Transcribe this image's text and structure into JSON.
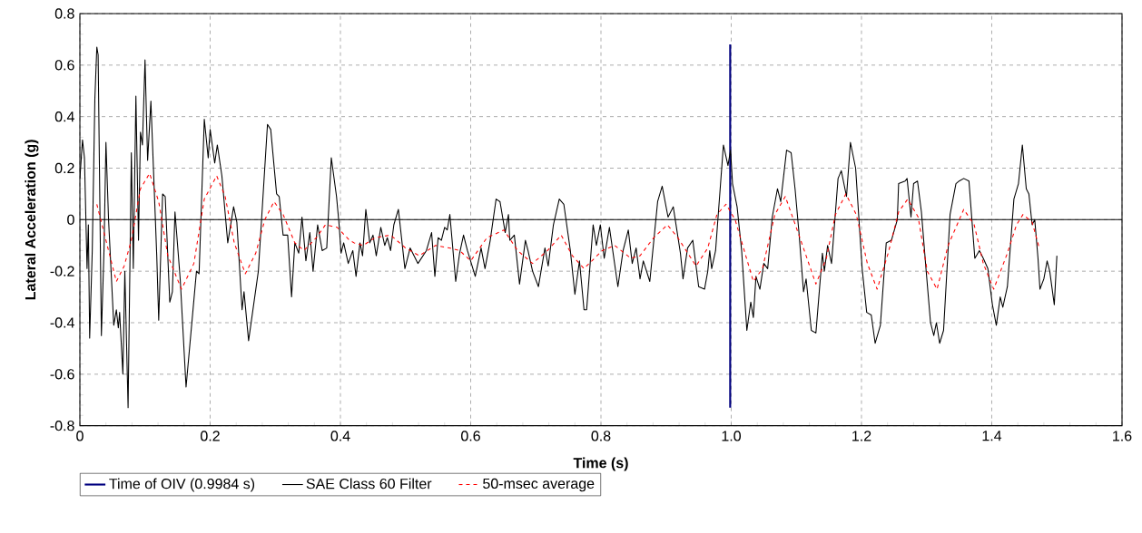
{
  "chart_data": {
    "type": "line",
    "xlabel": "Time (s)",
    "ylabel": "Lateral Acceleration (g)",
    "xlim": [
      0,
      1.6
    ],
    "ylim": [
      -0.8,
      0.8
    ],
    "xticks": [
      0,
      0.2,
      0.4,
      0.6,
      0.8,
      {
        "value": 1,
        "label": "1.0"
      },
      1.2,
      1.4,
      1.6
    ],
    "yticks": [
      -0.8,
      -0.6,
      -0.4,
      -0.2,
      0,
      0.2,
      0.4,
      0.6,
      0.8
    ],
    "grid": true,
    "legend": "bottom left",
    "marker": "none",
    "ref_lines": [
      {
        "axis": "y",
        "value": 0,
        "color": "#000000",
        "line_style": "solid"
      }
    ],
    "series": [
      {
        "name": "Time of OIV (0.9984 s)",
        "color": "#000080",
        "line_style": "solid",
        "x": [
          0.9984,
          0.9984
        ],
        "values": [
          -0.73,
          0.68
        ]
      },
      {
        "name": "SAE Class 60 Filter",
        "color": "#000000",
        "line_style": "solid",
        "x": [
          0.0,
          0.004,
          0.007,
          0.011,
          0.013,
          0.015,
          0.019,
          0.023,
          0.026,
          0.028,
          0.033,
          0.037,
          0.04,
          0.044,
          0.052,
          0.056,
          0.059,
          0.061,
          0.066,
          0.069,
          0.074,
          0.079,
          0.082,
          0.086,
          0.09,
          0.093,
          0.096,
          0.1,
          0.104,
          0.109,
          0.118,
          0.121,
          0.127,
          0.131,
          0.138,
          0.142,
          0.146,
          0.154,
          0.163,
          0.179,
          0.183,
          0.191,
          0.197,
          0.2,
          0.207,
          0.211,
          0.218,
          0.227,
          0.236,
          0.241,
          0.249,
          0.252,
          0.259,
          0.274,
          0.288,
          0.293,
          0.302,
          0.306,
          0.312,
          0.319,
          0.325,
          0.33,
          0.336,
          0.341,
          0.347,
          0.353,
          0.358,
          0.365,
          0.372,
          0.379,
          0.386,
          0.394,
          0.398,
          0.401,
          0.405,
          0.412,
          0.419,
          0.424,
          0.43,
          0.434,
          0.439,
          0.445,
          0.45,
          0.455,
          0.462,
          0.468,
          0.472,
          0.477,
          0.482,
          0.489,
          0.499,
          0.507,
          0.519,
          0.532,
          0.54,
          0.545,
          0.55,
          0.555,
          0.56,
          0.564,
          0.568,
          0.577,
          0.583,
          0.589,
          0.595,
          0.607,
          0.616,
          0.622,
          0.63,
          0.639,
          0.645,
          0.653,
          0.658,
          0.66,
          0.667,
          0.675,
          0.684,
          0.688,
          0.695,
          0.704,
          0.714,
          0.719,
          0.727,
          0.736,
          0.743,
          0.753,
          0.76,
          0.767,
          0.774,
          0.778,
          0.788,
          0.793,
          0.799,
          0.805,
          0.813,
          0.826,
          0.834,
          0.842,
          0.848,
          0.854,
          0.86,
          0.865,
          0.875,
          0.887,
          0.894,
          0.903,
          0.911,
          0.922,
          0.926,
          0.933,
          0.941,
          0.95,
          0.959,
          0.964,
          0.967,
          0.97,
          0.976,
          0.988,
          0.995,
          0.999,
          1.002,
          1.009,
          1.016,
          1.024,
          1.03,
          1.034,
          1.038,
          1.044,
          1.05,
          1.056,
          1.063,
          1.071,
          1.076,
          1.085,
          1.092,
          1.098,
          1.104,
          1.111,
          1.115,
          1.123,
          1.13,
          1.14,
          1.143,
          1.148,
          1.154,
          1.164,
          1.169,
          1.177,
          1.183,
          1.191,
          1.201,
          1.208,
          1.215,
          1.221,
          1.229,
          1.238,
          1.246,
          1.255,
          1.257,
          1.267,
          1.27,
          1.276,
          1.28,
          1.286,
          1.292,
          1.299,
          1.306,
          1.311,
          1.315,
          1.32,
          1.326,
          1.336,
          1.345,
          1.35,
          1.357,
          1.365,
          1.374,
          1.381,
          1.387,
          1.394,
          1.401,
          1.407,
          1.413,
          1.417,
          1.424,
          1.434,
          1.441,
          1.447,
          1.453,
          1.457,
          1.462,
          1.466,
          1.471,
          1.474,
          1.48,
          1.485,
          1.489,
          1.496,
          1.5
        ],
        "values": [
          0.16,
          0.31,
          0.24,
          -0.19,
          -0.02,
          -0.46,
          -0.12,
          0.47,
          0.67,
          0.64,
          -0.45,
          -0.12,
          0.3,
          0.0,
          -0.41,
          -0.35,
          -0.42,
          -0.36,
          -0.6,
          -0.2,
          -0.73,
          0.26,
          -0.19,
          0.48,
          -0.08,
          0.34,
          0.29,
          0.62,
          0.23,
          0.46,
          -0.14,
          -0.39,
          0.1,
          0.09,
          -0.32,
          -0.28,
          0.03,
          -0.23,
          -0.65,
          -0.2,
          -0.21,
          0.39,
          0.24,
          0.35,
          0.22,
          0.29,
          0.17,
          -0.09,
          0.05,
          -0.01,
          -0.35,
          -0.28,
          -0.47,
          -0.2,
          0.37,
          0.35,
          0.1,
          0.09,
          -0.06,
          -0.06,
          -0.3,
          -0.09,
          -0.13,
          0.01,
          -0.16,
          -0.05,
          -0.2,
          -0.02,
          -0.12,
          -0.11,
          0.24,
          0.09,
          -0.02,
          -0.13,
          -0.09,
          -0.17,
          -0.12,
          -0.22,
          -0.09,
          -0.14,
          0.04,
          -0.09,
          -0.06,
          -0.14,
          -0.03,
          -0.1,
          -0.07,
          -0.12,
          -0.02,
          0.04,
          -0.19,
          -0.11,
          -0.17,
          -0.12,
          -0.05,
          -0.22,
          -0.07,
          -0.08,
          -0.03,
          -0.04,
          0.02,
          -0.24,
          -0.13,
          -0.06,
          -0.12,
          -0.22,
          -0.11,
          -0.19,
          -0.08,
          0.08,
          0.07,
          -0.05,
          0.02,
          -0.08,
          -0.06,
          -0.25,
          -0.08,
          -0.12,
          -0.2,
          -0.26,
          -0.11,
          -0.18,
          -0.02,
          0.08,
          0.06,
          -0.12,
          -0.29,
          -0.16,
          -0.35,
          -0.35,
          -0.02,
          -0.1,
          -0.02,
          -0.15,
          -0.03,
          -0.26,
          -0.12,
          -0.04,
          -0.17,
          -0.11,
          -0.23,
          -0.16,
          -0.24,
          0.07,
          0.13,
          0.01,
          0.05,
          -0.13,
          -0.23,
          -0.11,
          -0.08,
          -0.26,
          -0.27,
          -0.2,
          -0.12,
          -0.19,
          -0.12,
          0.29,
          0.21,
          0.27,
          0.14,
          0.05,
          -0.12,
          -0.43,
          -0.32,
          -0.38,
          -0.22,
          -0.27,
          -0.17,
          -0.19,
          0.01,
          0.12,
          0.07,
          0.27,
          0.26,
          0.12,
          -0.05,
          -0.28,
          -0.23,
          -0.43,
          -0.44,
          -0.13,
          -0.2,
          -0.1,
          -0.17,
          0.16,
          0.19,
          0.09,
          0.3,
          0.2,
          -0.19,
          -0.36,
          -0.37,
          -0.48,
          -0.41,
          -0.09,
          -0.08,
          0.0,
          0.14,
          0.15,
          0.16,
          0.01,
          0.14,
          0.15,
          0.03,
          -0.19,
          -0.4,
          -0.45,
          -0.4,
          -0.48,
          -0.43,
          0.02,
          0.14,
          0.15,
          0.16,
          0.15,
          -0.15,
          -0.12,
          -0.15,
          -0.19,
          -0.33,
          -0.41,
          -0.3,
          -0.34,
          -0.26,
          0.08,
          0.14,
          0.29,
          0.12,
          0.1,
          -0.02,
          0.0,
          -0.15,
          -0.27,
          -0.23,
          -0.16,
          -0.2,
          -0.33,
          -0.14
        ]
      },
      {
        "name": "50-msec average",
        "color": "#ff0000",
        "line_style": "dashed",
        "x": [
          0.026,
          0.04,
          0.056,
          0.068,
          0.079,
          0.093,
          0.107,
          0.121,
          0.135,
          0.156,
          0.175,
          0.191,
          0.21,
          0.223,
          0.237,
          0.254,
          0.27,
          0.284,
          0.298,
          0.312,
          0.33,
          0.344,
          0.363,
          0.377,
          0.395,
          0.414,
          0.421,
          0.435,
          0.453,
          0.477,
          0.5,
          0.521,
          0.546,
          0.567,
          0.583,
          0.6,
          0.625,
          0.651,
          0.672,
          0.695,
          0.718,
          0.739,
          0.756,
          0.774,
          0.802,
          0.821,
          0.846,
          0.86,
          0.881,
          0.902,
          0.918,
          0.946,
          0.964,
          0.978,
          0.992,
          1.006,
          1.034,
          1.048,
          1.067,
          1.083,
          1.104,
          1.13,
          1.146,
          1.16,
          1.176,
          1.192,
          1.209,
          1.224,
          1.241,
          1.257,
          1.271,
          1.287,
          1.301,
          1.316,
          1.333,
          1.357,
          1.373,
          1.387,
          1.403,
          1.424,
          1.438,
          1.448,
          1.462,
          1.473
        ],
        "values": [
          0.06,
          -0.08,
          -0.24,
          -0.18,
          -0.08,
          0.12,
          0.18,
          0.07,
          -0.14,
          -0.27,
          -0.17,
          0.08,
          0.17,
          0.09,
          -0.09,
          -0.21,
          -0.13,
          0.0,
          0.07,
          0.02,
          -0.09,
          -0.12,
          -0.07,
          -0.02,
          -0.03,
          -0.08,
          -0.09,
          -0.1,
          -0.07,
          -0.06,
          -0.11,
          -0.14,
          -0.1,
          -0.11,
          -0.12,
          -0.16,
          -0.07,
          -0.04,
          -0.12,
          -0.17,
          -0.12,
          -0.06,
          -0.14,
          -0.19,
          -0.12,
          -0.1,
          -0.15,
          -0.14,
          -0.07,
          -0.02,
          -0.07,
          -0.18,
          -0.11,
          0.02,
          0.06,
          0.0,
          -0.24,
          -0.19,
          0.02,
          0.09,
          -0.06,
          -0.25,
          -0.15,
          0.02,
          0.1,
          0.02,
          -0.17,
          -0.27,
          -0.13,
          0.03,
          0.08,
          0.01,
          -0.2,
          -0.27,
          -0.1,
          0.04,
          -0.02,
          -0.17,
          -0.27,
          -0.13,
          -0.02,
          0.02,
          -0.01,
          -0.11
        ]
      }
    ]
  }
}
